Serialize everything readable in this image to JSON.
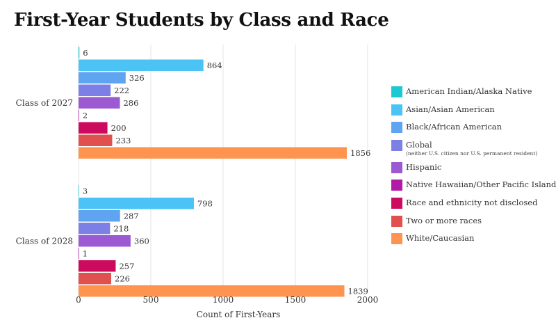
{
  "chart_data": {
    "type": "bar",
    "orientation": "horizontal",
    "title": "First-Year Students by Class and Race",
    "xlabel": "Count of First-Years",
    "ylabel": "",
    "xlim": [
      0,
      2000
    ],
    "xticks": [
      0,
      500,
      1000,
      1500,
      2000
    ],
    "grid": true,
    "legend_position": "right",
    "categories": [
      "Class of 2027",
      "Class of 2028"
    ],
    "series": [
      {
        "name": "American Indian/Alaska Native",
        "color": "#1ec8d2",
        "values": [
          6,
          3
        ]
      },
      {
        "name": "Asian/Asian American",
        "color": "#4cc3f5",
        "values": [
          864,
          798
        ]
      },
      {
        "name": "Black/African American",
        "color": "#5fa4f0",
        "values": [
          326,
          287
        ]
      },
      {
        "name": "Global",
        "note": "(neither U.S. citizen nor U.S. permanent resident)",
        "color": "#7b7fe6",
        "values": [
          222,
          218
        ]
      },
      {
        "name": "Hispanic",
        "color": "#9b59d2",
        "values": [
          286,
          360
        ]
      },
      {
        "name": "Native Hawaiian/Other Pacific Islander",
        "color": "#b11aa6",
        "values": [
          2,
          1
        ]
      },
      {
        "name": "Race and ethnicity not disclosed",
        "color": "#cc0a5e",
        "values": [
          200,
          257
        ]
      },
      {
        "name": "Two or more races",
        "color": "#e0504e",
        "values": [
          233,
          226
        ]
      },
      {
        "name": "White/Caucasian",
        "color": "#ff9350",
        "values": [
          1856,
          1839
        ]
      }
    ]
  }
}
